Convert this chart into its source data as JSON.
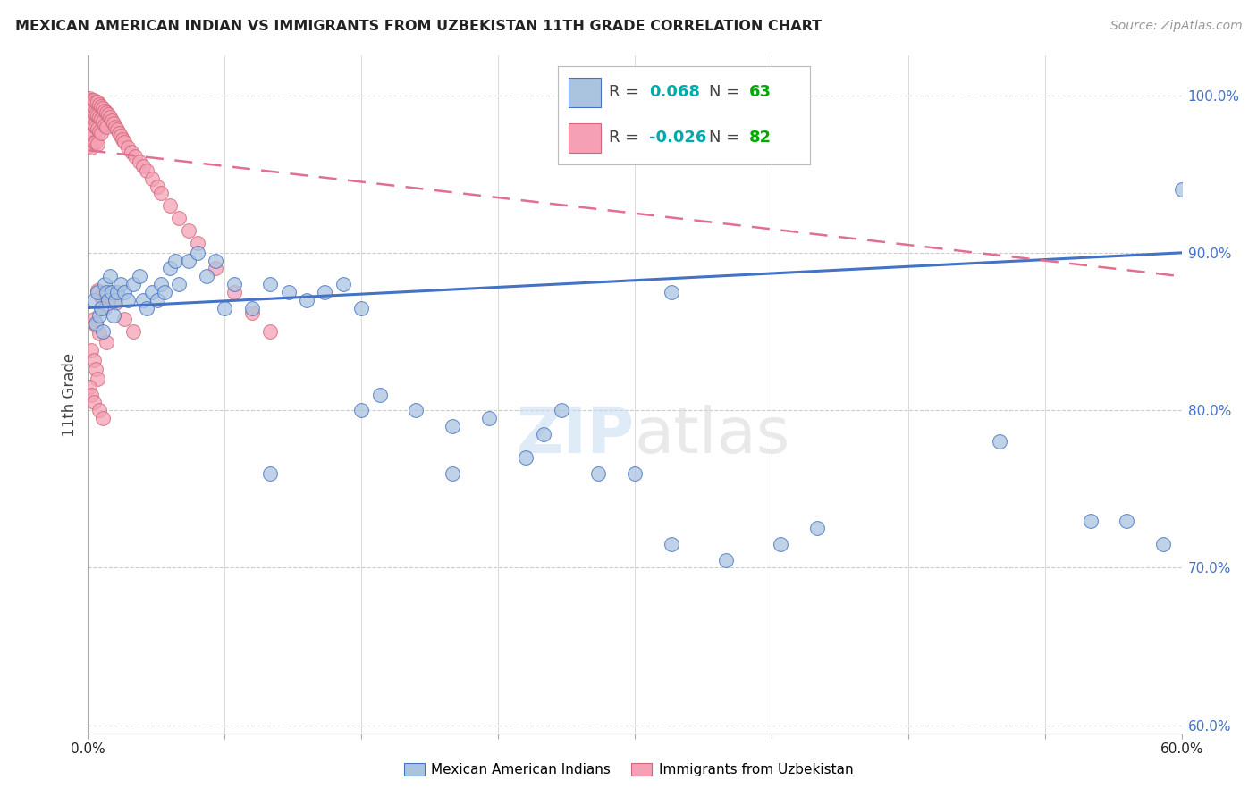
{
  "title": "MEXICAN AMERICAN INDIAN VS IMMIGRANTS FROM UZBEKISTAN 11TH GRADE CORRELATION CHART",
  "source": "Source: ZipAtlas.com",
  "ylabel": "11th Grade",
  "ylabel_right_vals": [
    0.6,
    0.7,
    0.8,
    0.9,
    1.0
  ],
  "xlim": [
    0.0,
    0.6
  ],
  "ylim": [
    0.595,
    1.025
  ],
  "legend_blue_R_val": "0.068",
  "legend_blue_N_val": "63",
  "legend_pink_R_val": "-0.026",
  "legend_pink_N_val": "82",
  "blue_color": "#aac4e0",
  "pink_color": "#f5a0b5",
  "blue_line_color": "#4472c4",
  "pink_line_color": "#e07090",
  "watermark": "ZIPatlas",
  "blue_scatter_x": [
    0.003,
    0.004,
    0.005,
    0.006,
    0.007,
    0.008,
    0.009,
    0.01,
    0.011,
    0.012,
    0.013,
    0.014,
    0.015,
    0.016,
    0.018,
    0.02,
    0.022,
    0.025,
    0.028,
    0.03,
    0.032,
    0.035,
    0.038,
    0.04,
    0.042,
    0.045,
    0.048,
    0.05,
    0.055,
    0.06,
    0.065,
    0.07,
    0.075,
    0.08,
    0.09,
    0.1,
    0.11,
    0.12,
    0.13,
    0.14,
    0.15,
    0.16,
    0.18,
    0.2,
    0.22,
    0.24,
    0.26,
    0.28,
    0.3,
    0.32,
    0.35,
    0.38,
    0.4,
    0.32,
    0.55,
    0.57,
    0.59,
    0.6,
    0.1,
    0.15,
    0.2,
    0.25,
    0.5
  ],
  "blue_scatter_y": [
    0.87,
    0.855,
    0.875,
    0.86,
    0.865,
    0.85,
    0.88,
    0.875,
    0.87,
    0.885,
    0.875,
    0.86,
    0.87,
    0.875,
    0.88,
    0.875,
    0.87,
    0.88,
    0.885,
    0.87,
    0.865,
    0.875,
    0.87,
    0.88,
    0.875,
    0.89,
    0.895,
    0.88,
    0.895,
    0.9,
    0.885,
    0.895,
    0.865,
    0.88,
    0.865,
    0.88,
    0.875,
    0.87,
    0.875,
    0.88,
    0.865,
    0.81,
    0.8,
    0.79,
    0.795,
    0.77,
    0.8,
    0.76,
    0.76,
    0.715,
    0.705,
    0.715,
    0.725,
    0.875,
    0.73,
    0.73,
    0.715,
    0.94,
    0.76,
    0.8,
    0.76,
    0.785,
    0.78
  ],
  "pink_scatter_x": [
    0.001,
    0.001,
    0.001,
    0.001,
    0.001,
    0.002,
    0.002,
    0.002,
    0.002,
    0.002,
    0.003,
    0.003,
    0.003,
    0.003,
    0.004,
    0.004,
    0.004,
    0.004,
    0.005,
    0.005,
    0.005,
    0.005,
    0.006,
    0.006,
    0.006,
    0.007,
    0.007,
    0.007,
    0.008,
    0.008,
    0.009,
    0.009,
    0.01,
    0.01,
    0.011,
    0.012,
    0.013,
    0.014,
    0.015,
    0.016,
    0.017,
    0.018,
    0.019,
    0.02,
    0.022,
    0.024,
    0.026,
    0.028,
    0.03,
    0.032,
    0.035,
    0.038,
    0.04,
    0.045,
    0.05,
    0.055,
    0.06,
    0.07,
    0.08,
    0.09,
    0.1,
    0.012,
    0.015,
    0.02,
    0.025,
    0.005,
    0.007,
    0.008,
    0.009,
    0.003,
    0.004,
    0.006,
    0.01,
    0.002,
    0.003,
    0.004,
    0.005,
    0.001,
    0.002,
    0.003,
    0.006,
    0.008
  ],
  "pink_scatter_y": [
    0.998,
    0.99,
    0.982,
    0.975,
    0.968,
    0.997,
    0.99,
    0.983,
    0.975,
    0.967,
    0.997,
    0.989,
    0.981,
    0.97,
    0.996,
    0.988,
    0.98,
    0.97,
    0.996,
    0.987,
    0.979,
    0.969,
    0.994,
    0.986,
    0.977,
    0.993,
    0.985,
    0.976,
    0.992,
    0.983,
    0.99,
    0.981,
    0.989,
    0.98,
    0.988,
    0.986,
    0.984,
    0.982,
    0.98,
    0.978,
    0.976,
    0.974,
    0.972,
    0.97,
    0.967,
    0.964,
    0.961,
    0.958,
    0.955,
    0.952,
    0.947,
    0.942,
    0.938,
    0.93,
    0.922,
    0.914,
    0.906,
    0.89,
    0.875,
    0.862,
    0.85,
    0.875,
    0.868,
    0.858,
    0.85,
    0.876,
    0.872,
    0.87,
    0.865,
    0.858,
    0.854,
    0.849,
    0.843,
    0.838,
    0.832,
    0.826,
    0.82,
    0.815,
    0.81,
    0.805,
    0.8,
    0.795
  ],
  "background_color": "#ffffff",
  "grid_color": "#cccccc"
}
